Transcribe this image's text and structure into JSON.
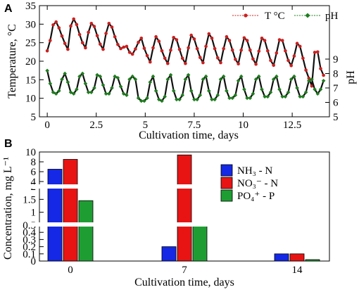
{
  "panel_a_label": "A",
  "panel_b_label": "B",
  "chart_data": [
    {
      "type": "line",
      "title": "",
      "xlabel": "Cultivation time, days",
      "ylabel": "Temperature, °C",
      "y2label": "pH",
      "xlim": [
        -0.4,
        14.4
      ],
      "ylim": [
        5,
        35
      ],
      "y2lim": [
        5,
        9
      ],
      "xticks": [
        0,
        2.5,
        5,
        7.5,
        10,
        12.5
      ],
      "xtick_labels": [
        "0",
        "2.5",
        "5",
        "7.5",
        "10",
        "12.5"
      ],
      "yticks": [
        5,
        10,
        15,
        20,
        25,
        30,
        35
      ],
      "yticks_labels": [
        "5",
        "10",
        "15",
        "20",
        "25",
        "30",
        "35"
      ],
      "y2ticks": [
        5,
        6,
        7,
        8,
        9
      ],
      "y2ticks_labels": [
        "5",
        "6",
        "7",
        "8",
        "9"
      ],
      "legend_position": "top-right",
      "series": [
        {
          "name": "T °C",
          "axis": "left",
          "color": "#cc1f1f",
          "marker": "circle",
          "x": [
            0.0,
            0.15,
            0.3,
            0.45,
            0.6,
            0.75,
            0.9,
            1.05,
            1.2,
            1.35,
            1.5,
            1.65,
            1.8,
            1.95,
            2.1,
            2.25,
            2.4,
            2.55,
            2.7,
            2.85,
            3.0,
            3.15,
            3.3,
            3.45,
            3.6,
            3.75,
            3.9,
            4.05,
            4.2,
            4.35,
            4.5,
            4.65,
            4.8,
            4.95,
            5.1,
            5.25,
            5.4,
            5.55,
            5.7,
            5.85,
            6.0,
            6.15,
            6.3,
            6.45,
            6.6,
            6.75,
            6.9,
            7.05,
            7.2,
            7.35,
            7.5,
            7.65,
            7.8,
            7.95,
            8.1,
            8.25,
            8.4,
            8.55,
            8.7,
            8.85,
            9.0,
            9.15,
            9.3,
            9.45,
            9.6,
            9.75,
            9.9,
            10.05,
            10.2,
            10.35,
            10.5,
            10.65,
            10.8,
            10.95,
            11.1,
            11.25,
            11.4,
            11.55,
            11.7,
            11.85,
            12.0,
            12.15,
            12.3,
            12.45,
            12.6,
            12.75,
            12.9,
            13.05,
            13.2,
            13.35,
            13.5,
            13.65,
            13.8,
            13.95,
            14.1
          ],
          "y": [
            22.8,
            25.6,
            29.8,
            30.6,
            29.0,
            26.8,
            24.8,
            23.2,
            29.5,
            31.4,
            29.9,
            27.2,
            25.0,
            23.6,
            27.8,
            30.2,
            29.4,
            26.9,
            24.6,
            23.2,
            27.5,
            30.2,
            29.2,
            26.6,
            24.5,
            23.4,
            23.8,
            24.0,
            22.4,
            21.9,
            23.3,
            25.1,
            26.2,
            23.5,
            21.5,
            19.8,
            23.6,
            26.6,
            25.4,
            22.8,
            20.8,
            19.4,
            23.0,
            26.4,
            25.8,
            23.2,
            20.8,
            19.4,
            23.6,
            27.0,
            26.0,
            23.4,
            21.0,
            19.6,
            24.0,
            27.4,
            26.2,
            23.4,
            20.9,
            19.6,
            23.4,
            26.6,
            25.6,
            23.0,
            20.5,
            19.3,
            23.0,
            26.3,
            25.6,
            23.0,
            20.6,
            19.2,
            22.7,
            26.2,
            25.6,
            22.8,
            20.2,
            18.9,
            22.2,
            25.8,
            25.6,
            22.8,
            20.2,
            18.8,
            21.4,
            24.8,
            24.0,
            20.8,
            17.6,
            15.4,
            13.3,
            22.4,
            22.5,
            18.0,
            16.2
          ]
        },
        {
          "name": "pH",
          "axis": "right",
          "color": "#1e7d1e",
          "marker": "diamond",
          "x": [
            0.0,
            0.15,
            0.3,
            0.45,
            0.6,
            0.75,
            0.9,
            1.05,
            1.2,
            1.35,
            1.5,
            1.65,
            1.8,
            1.95,
            2.1,
            2.25,
            2.4,
            2.55,
            2.7,
            2.85,
            3.0,
            3.15,
            3.3,
            3.45,
            3.6,
            3.75,
            3.9,
            4.05,
            4.2,
            4.35,
            4.5,
            4.65,
            4.8,
            4.95,
            5.1,
            5.25,
            5.4,
            5.55,
            5.7,
            5.85,
            6.0,
            6.15,
            6.3,
            6.45,
            6.6,
            6.75,
            6.9,
            7.05,
            7.2,
            7.35,
            7.5,
            7.65,
            7.8,
            7.95,
            8.1,
            8.25,
            8.4,
            8.55,
            8.7,
            8.85,
            9.0,
            9.15,
            9.3,
            9.45,
            9.6,
            9.75,
            9.9,
            10.05,
            10.2,
            10.35,
            10.5,
            10.65,
            10.8,
            10.95,
            11.1,
            11.25,
            11.4,
            11.55,
            11.7,
            11.85,
            12.0,
            12.15,
            12.3,
            12.45,
            12.6,
            12.75,
            12.9,
            13.05,
            13.2,
            13.35,
            13.5,
            13.65,
            13.8,
            13.95,
            14.1
          ],
          "y": [
            8.2,
            7.3,
            6.7,
            6.6,
            6.8,
            7.6,
            8.0,
            7.4,
            6.7,
            6.6,
            6.9,
            7.8,
            8.0,
            7.3,
            6.7,
            6.7,
            7.0,
            7.9,
            7.8,
            7.2,
            6.6,
            6.6,
            7.0,
            7.8,
            7.7,
            7.1,
            6.6,
            6.5,
            7.6,
            7.8,
            7.6,
            6.3,
            6.1,
            6.1,
            6.3,
            7.4,
            7.8,
            6.8,
            6.2,
            6.1,
            6.4,
            7.6,
            7.9,
            6.8,
            6.2,
            6.2,
            6.5,
            7.6,
            7.9,
            6.8,
            6.2,
            6.2,
            6.5,
            7.6,
            7.8,
            6.8,
            6.2,
            6.2,
            6.5,
            7.6,
            7.8,
            6.8,
            6.3,
            6.3,
            6.5,
            7.5,
            7.8,
            6.9,
            6.3,
            6.3,
            6.6,
            7.6,
            7.8,
            6.9,
            6.4,
            6.4,
            6.7,
            7.6,
            7.8,
            6.9,
            6.4,
            6.4,
            6.7,
            7.6,
            7.8,
            7.0,
            6.4,
            6.4,
            6.7,
            7.5,
            7.6,
            6.9,
            6.6,
            6.9,
            7.5
          ]
        }
      ]
    },
    {
      "type": "bar",
      "title": "",
      "xlabel": "Cultivation time, days",
      "ylabel": "Concentration, mg L⁻¹",
      "categories": [
        "0",
        "7",
        "14"
      ],
      "yticks_labels": [
        "0",
        "0.1",
        "0.2",
        "0.3",
        "0.4",
        "0.5",
        "1",
        "1.5",
        "2",
        "4",
        "6",
        "8",
        "10"
      ],
      "axis_breaks": [
        "between 0.5 and 1",
        "between 2 and 4"
      ],
      "legend_position": "top-right",
      "series": [
        {
          "name": "NH₃ - N",
          "color": "#1428e6",
          "values": [
            6.5,
            0.2,
            0.1
          ]
        },
        {
          "name": "NO₃⁻ - N",
          "color": "#e81414",
          "values": [
            8.5,
            9.4,
            0.1
          ]
        },
        {
          "name": "PO₄⁺ - P",
          "color": "#1e9e32",
          "values": [
            1.45,
            0.5,
            0.02
          ]
        }
      ]
    }
  ]
}
